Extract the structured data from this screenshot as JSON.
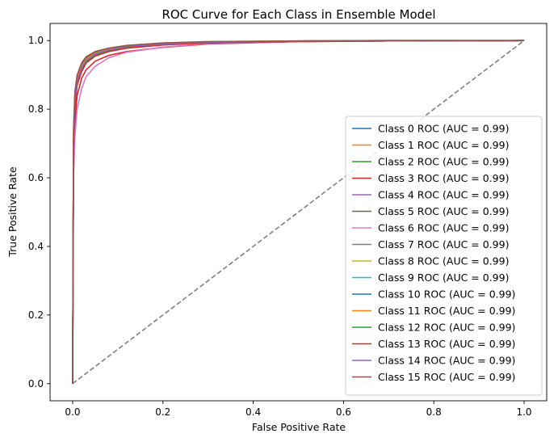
{
  "chart_data": {
    "type": "line",
    "title": "ROC Curve for Each Class in Ensemble Model",
    "xlabel": "False Positive Rate",
    "ylabel": "True Positive Rate",
    "xlim": [
      -0.05,
      1.05
    ],
    "ylim": [
      -0.05,
      1.05
    ],
    "xticks": [
      "0.0",
      "0.2",
      "0.4",
      "0.6",
      "0.8",
      "1.0"
    ],
    "yticks": [
      "0.0",
      "0.2",
      "0.4",
      "0.6",
      "0.8",
      "1.0"
    ],
    "grid": false,
    "legend_position": "lower-right",
    "diagonal": {
      "x": [
        0,
        1
      ],
      "y": [
        0,
        1
      ],
      "color": "#808080",
      "style": "dashed"
    },
    "series": [
      {
        "name": "Class 0 ROC (AUC = 0.99)",
        "color": "#1f77b4",
        "x": [
          0,
          0.002,
          0.005,
          0.01,
          0.02,
          0.03,
          0.05,
          0.08,
          0.12,
          0.2,
          0.3,
          0.5,
          0.7,
          1.0
        ],
        "y": [
          0,
          0.7,
          0.82,
          0.88,
          0.92,
          0.94,
          0.96,
          0.972,
          0.982,
          0.99,
          0.995,
          0.998,
          0.999,
          1.0
        ]
      },
      {
        "name": "Class 1 ROC (AUC = 0.99)",
        "color": "#ff7f0e",
        "x": [
          0,
          0.002,
          0.005,
          0.01,
          0.02,
          0.03,
          0.05,
          0.08,
          0.12,
          0.2,
          0.3,
          0.5,
          0.7,
          1.0
        ],
        "y": [
          0,
          0.72,
          0.83,
          0.89,
          0.925,
          0.945,
          0.962,
          0.974,
          0.984,
          0.991,
          0.996,
          0.998,
          0.999,
          1.0
        ]
      },
      {
        "name": "Class 2 ROC (AUC = 0.99)",
        "color": "#2ca02c",
        "x": [
          0,
          0.002,
          0.005,
          0.01,
          0.02,
          0.03,
          0.05,
          0.08,
          0.12,
          0.2,
          0.3,
          0.5,
          0.7,
          1.0
        ],
        "y": [
          0,
          0.69,
          0.81,
          0.875,
          0.915,
          0.938,
          0.958,
          0.97,
          0.98,
          0.989,
          0.994,
          0.998,
          0.999,
          1.0
        ]
      },
      {
        "name": "Class 3 ROC (AUC = 0.99)",
        "color": "#d62728",
        "x": [
          0,
          0.002,
          0.005,
          0.01,
          0.02,
          0.03,
          0.05,
          0.08,
          0.12,
          0.2,
          0.3,
          0.5,
          0.7,
          1.0
        ],
        "y": [
          0,
          0.64,
          0.76,
          0.84,
          0.89,
          0.915,
          0.94,
          0.957,
          0.968,
          0.98,
          0.99,
          0.997,
          0.999,
          1.0
        ]
      },
      {
        "name": "Class 4 ROC (AUC = 0.99)",
        "color": "#9467bd",
        "x": [
          0,
          0.002,
          0.005,
          0.01,
          0.02,
          0.03,
          0.05,
          0.08,
          0.12,
          0.2,
          0.3,
          0.5,
          0.7,
          1.0
        ],
        "y": [
          0,
          0.71,
          0.82,
          0.885,
          0.922,
          0.943,
          0.961,
          0.973,
          0.983,
          0.99,
          0.995,
          0.998,
          0.999,
          1.0
        ]
      },
      {
        "name": "Class 5 ROC (AUC = 0.99)",
        "color": "#8c564b",
        "x": [
          0,
          0.002,
          0.005,
          0.01,
          0.02,
          0.03,
          0.05,
          0.08,
          0.12,
          0.2,
          0.3,
          0.5,
          0.7,
          1.0
        ],
        "y": [
          0,
          0.73,
          0.84,
          0.895,
          0.93,
          0.95,
          0.965,
          0.976,
          0.985,
          0.992,
          0.996,
          0.999,
          1.0,
          1.0
        ]
      },
      {
        "name": "Class 6 ROC (AUC = 0.99)",
        "color": "#e377c2",
        "x": [
          0,
          0.002,
          0.005,
          0.01,
          0.02,
          0.03,
          0.05,
          0.08,
          0.12,
          0.2,
          0.3,
          0.5,
          0.7,
          1.0
        ],
        "y": [
          0,
          0.6,
          0.72,
          0.8,
          0.86,
          0.895,
          0.925,
          0.95,
          0.966,
          0.981,
          0.991,
          0.997,
          0.999,
          1.0
        ]
      },
      {
        "name": "Class 7 ROC (AUC = 0.99)",
        "color": "#7f7f7f",
        "x": [
          0,
          0.002,
          0.005,
          0.01,
          0.02,
          0.03,
          0.05,
          0.08,
          0.12,
          0.2,
          0.3,
          0.5,
          0.7,
          1.0
        ],
        "y": [
          0,
          0.7,
          0.82,
          0.88,
          0.92,
          0.942,
          0.96,
          0.972,
          0.982,
          0.99,
          0.995,
          0.998,
          0.999,
          1.0
        ]
      },
      {
        "name": "Class 8 ROC (AUC = 0.99)",
        "color": "#bcbd22",
        "x": [
          0,
          0.002,
          0.005,
          0.01,
          0.02,
          0.03,
          0.05,
          0.08,
          0.12,
          0.2,
          0.3,
          0.5,
          0.7,
          1.0
        ],
        "y": [
          0,
          0.72,
          0.83,
          0.89,
          0.925,
          0.946,
          0.963,
          0.975,
          0.985,
          0.993,
          0.997,
          0.999,
          1.0,
          1.0
        ]
      },
      {
        "name": "Class 9 ROC (AUC = 0.99)",
        "color": "#17becf",
        "x": [
          0,
          0.002,
          0.005,
          0.01,
          0.02,
          0.03,
          0.05,
          0.08,
          0.12,
          0.2,
          0.3,
          0.5,
          0.7,
          1.0
        ],
        "y": [
          0,
          0.71,
          0.83,
          0.885,
          0.924,
          0.944,
          0.962,
          0.974,
          0.984,
          0.991,
          0.996,
          0.998,
          0.999,
          1.0
        ]
      },
      {
        "name": "Class 10 ROC (AUC = 0.99)",
        "color": "#1f77b4",
        "x": [
          0,
          0.002,
          0.005,
          0.01,
          0.02,
          0.03,
          0.05,
          0.08,
          0.12,
          0.2,
          0.3,
          0.5,
          0.7,
          1.0
        ],
        "y": [
          0,
          0.7,
          0.815,
          0.878,
          0.918,
          0.94,
          0.959,
          0.971,
          0.981,
          0.989,
          0.995,
          0.998,
          0.999,
          1.0
        ]
      },
      {
        "name": "Class 11 ROC (AUC = 0.99)",
        "color": "#ff7f0e",
        "x": [
          0,
          0.002,
          0.005,
          0.01,
          0.02,
          0.03,
          0.05,
          0.08,
          0.12,
          0.2,
          0.3,
          0.5,
          0.7,
          1.0
        ],
        "y": [
          0,
          0.72,
          0.83,
          0.888,
          0.924,
          0.945,
          0.962,
          0.974,
          0.984,
          0.991,
          0.996,
          0.998,
          0.999,
          1.0
        ]
      },
      {
        "name": "Class 12 ROC (AUC = 0.99)",
        "color": "#2ca02c",
        "x": [
          0,
          0.002,
          0.005,
          0.01,
          0.02,
          0.03,
          0.05,
          0.08,
          0.12,
          0.2,
          0.3,
          0.5,
          0.7,
          1.0
        ],
        "y": [
          0,
          0.69,
          0.81,
          0.876,
          0.916,
          0.939,
          0.958,
          0.97,
          0.98,
          0.989,
          0.994,
          0.998,
          0.999,
          1.0
        ]
      },
      {
        "name": "Class 13 ROC (AUC = 0.99)",
        "color": "#d62728",
        "x": [
          0,
          0.002,
          0.005,
          0.01,
          0.02,
          0.03,
          0.05,
          0.08,
          0.12,
          0.2,
          0.3,
          0.5,
          0.7,
          1.0
        ],
        "y": [
          0,
          0.68,
          0.8,
          0.87,
          0.91,
          0.935,
          0.955,
          0.968,
          0.978,
          0.987,
          0.993,
          0.997,
          0.999,
          1.0
        ]
      },
      {
        "name": "Class 14 ROC (AUC = 0.99)",
        "color": "#9467bd",
        "x": [
          0,
          0.002,
          0.005,
          0.01,
          0.02,
          0.03,
          0.05,
          0.08,
          0.12,
          0.2,
          0.3,
          0.5,
          0.7,
          1.0
        ],
        "y": [
          0,
          0.71,
          0.82,
          0.884,
          0.921,
          0.943,
          0.961,
          0.973,
          0.983,
          0.99,
          0.995,
          0.998,
          0.999,
          1.0
        ]
      },
      {
        "name": "Class 15 ROC (AUC = 0.99)",
        "color": "#8c564b",
        "x": [
          0,
          0.002,
          0.005,
          0.01,
          0.02,
          0.03,
          0.05,
          0.08,
          0.12,
          0.2,
          0.3,
          0.5,
          0.7,
          1.0
        ],
        "y": [
          0,
          0.74,
          0.85,
          0.9,
          0.935,
          0.953,
          0.968,
          0.978,
          0.986,
          0.993,
          0.997,
          0.999,
          1.0,
          1.0
        ]
      }
    ]
  }
}
